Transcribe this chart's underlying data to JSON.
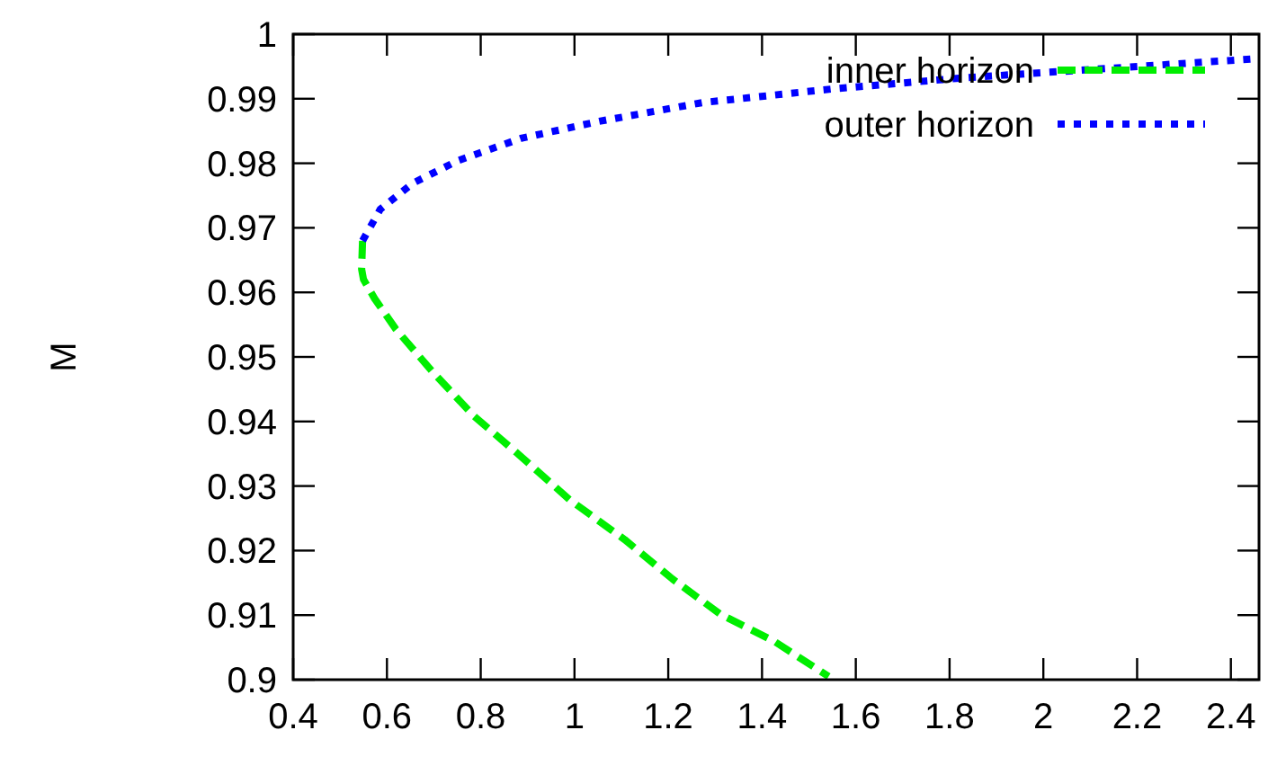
{
  "chart_data": {
    "type": "line",
    "ylabel": "M",
    "xlim": [
      0.4,
      2.46
    ],
    "xticks": [
      0.4,
      0.6,
      0.8,
      1,
      1.2,
      1.4,
      1.6,
      1.8,
      2,
      2.2,
      2.4
    ],
    "ylim": [
      0.9,
      1
    ],
    "yticks": [
      0.9,
      0.91,
      0.92,
      0.93,
      0.94,
      0.95,
      0.96,
      0.97,
      0.98,
      0.99,
      1
    ],
    "grid": false,
    "legend": "top right",
    "marker": "none",
    "series": [
      {
        "name": "inner horizon",
        "color": "#00ee00",
        "line_style": "dashed",
        "x": [
          0.548,
          0.546,
          0.55,
          0.574,
          0.619,
          0.696,
          0.786,
          0.876,
          0.991,
          1.107,
          1.209,
          1.312,
          1.427,
          1.542
        ],
        "values": [
          0.968,
          0.9636,
          0.962,
          0.959,
          0.9543,
          0.9478,
          0.9408,
          0.9352,
          0.9278,
          0.9217,
          0.9156,
          0.9101,
          0.9059,
          0.9005
        ]
      },
      {
        "name": "outer horizon",
        "color": "#0000ff",
        "line_style": "dotted",
        "x": [
          0.548,
          0.586,
          0.655,
          0.751,
          0.888,
          1.053,
          1.273,
          1.548,
          1.823,
          2.097,
          2.454
        ],
        "values": [
          0.968,
          0.9729,
          0.9769,
          0.9804,
          0.9839,
          0.9865,
          0.9894,
          0.9915,
          0.9932,
          0.9945,
          0.9962
        ]
      }
    ]
  }
}
